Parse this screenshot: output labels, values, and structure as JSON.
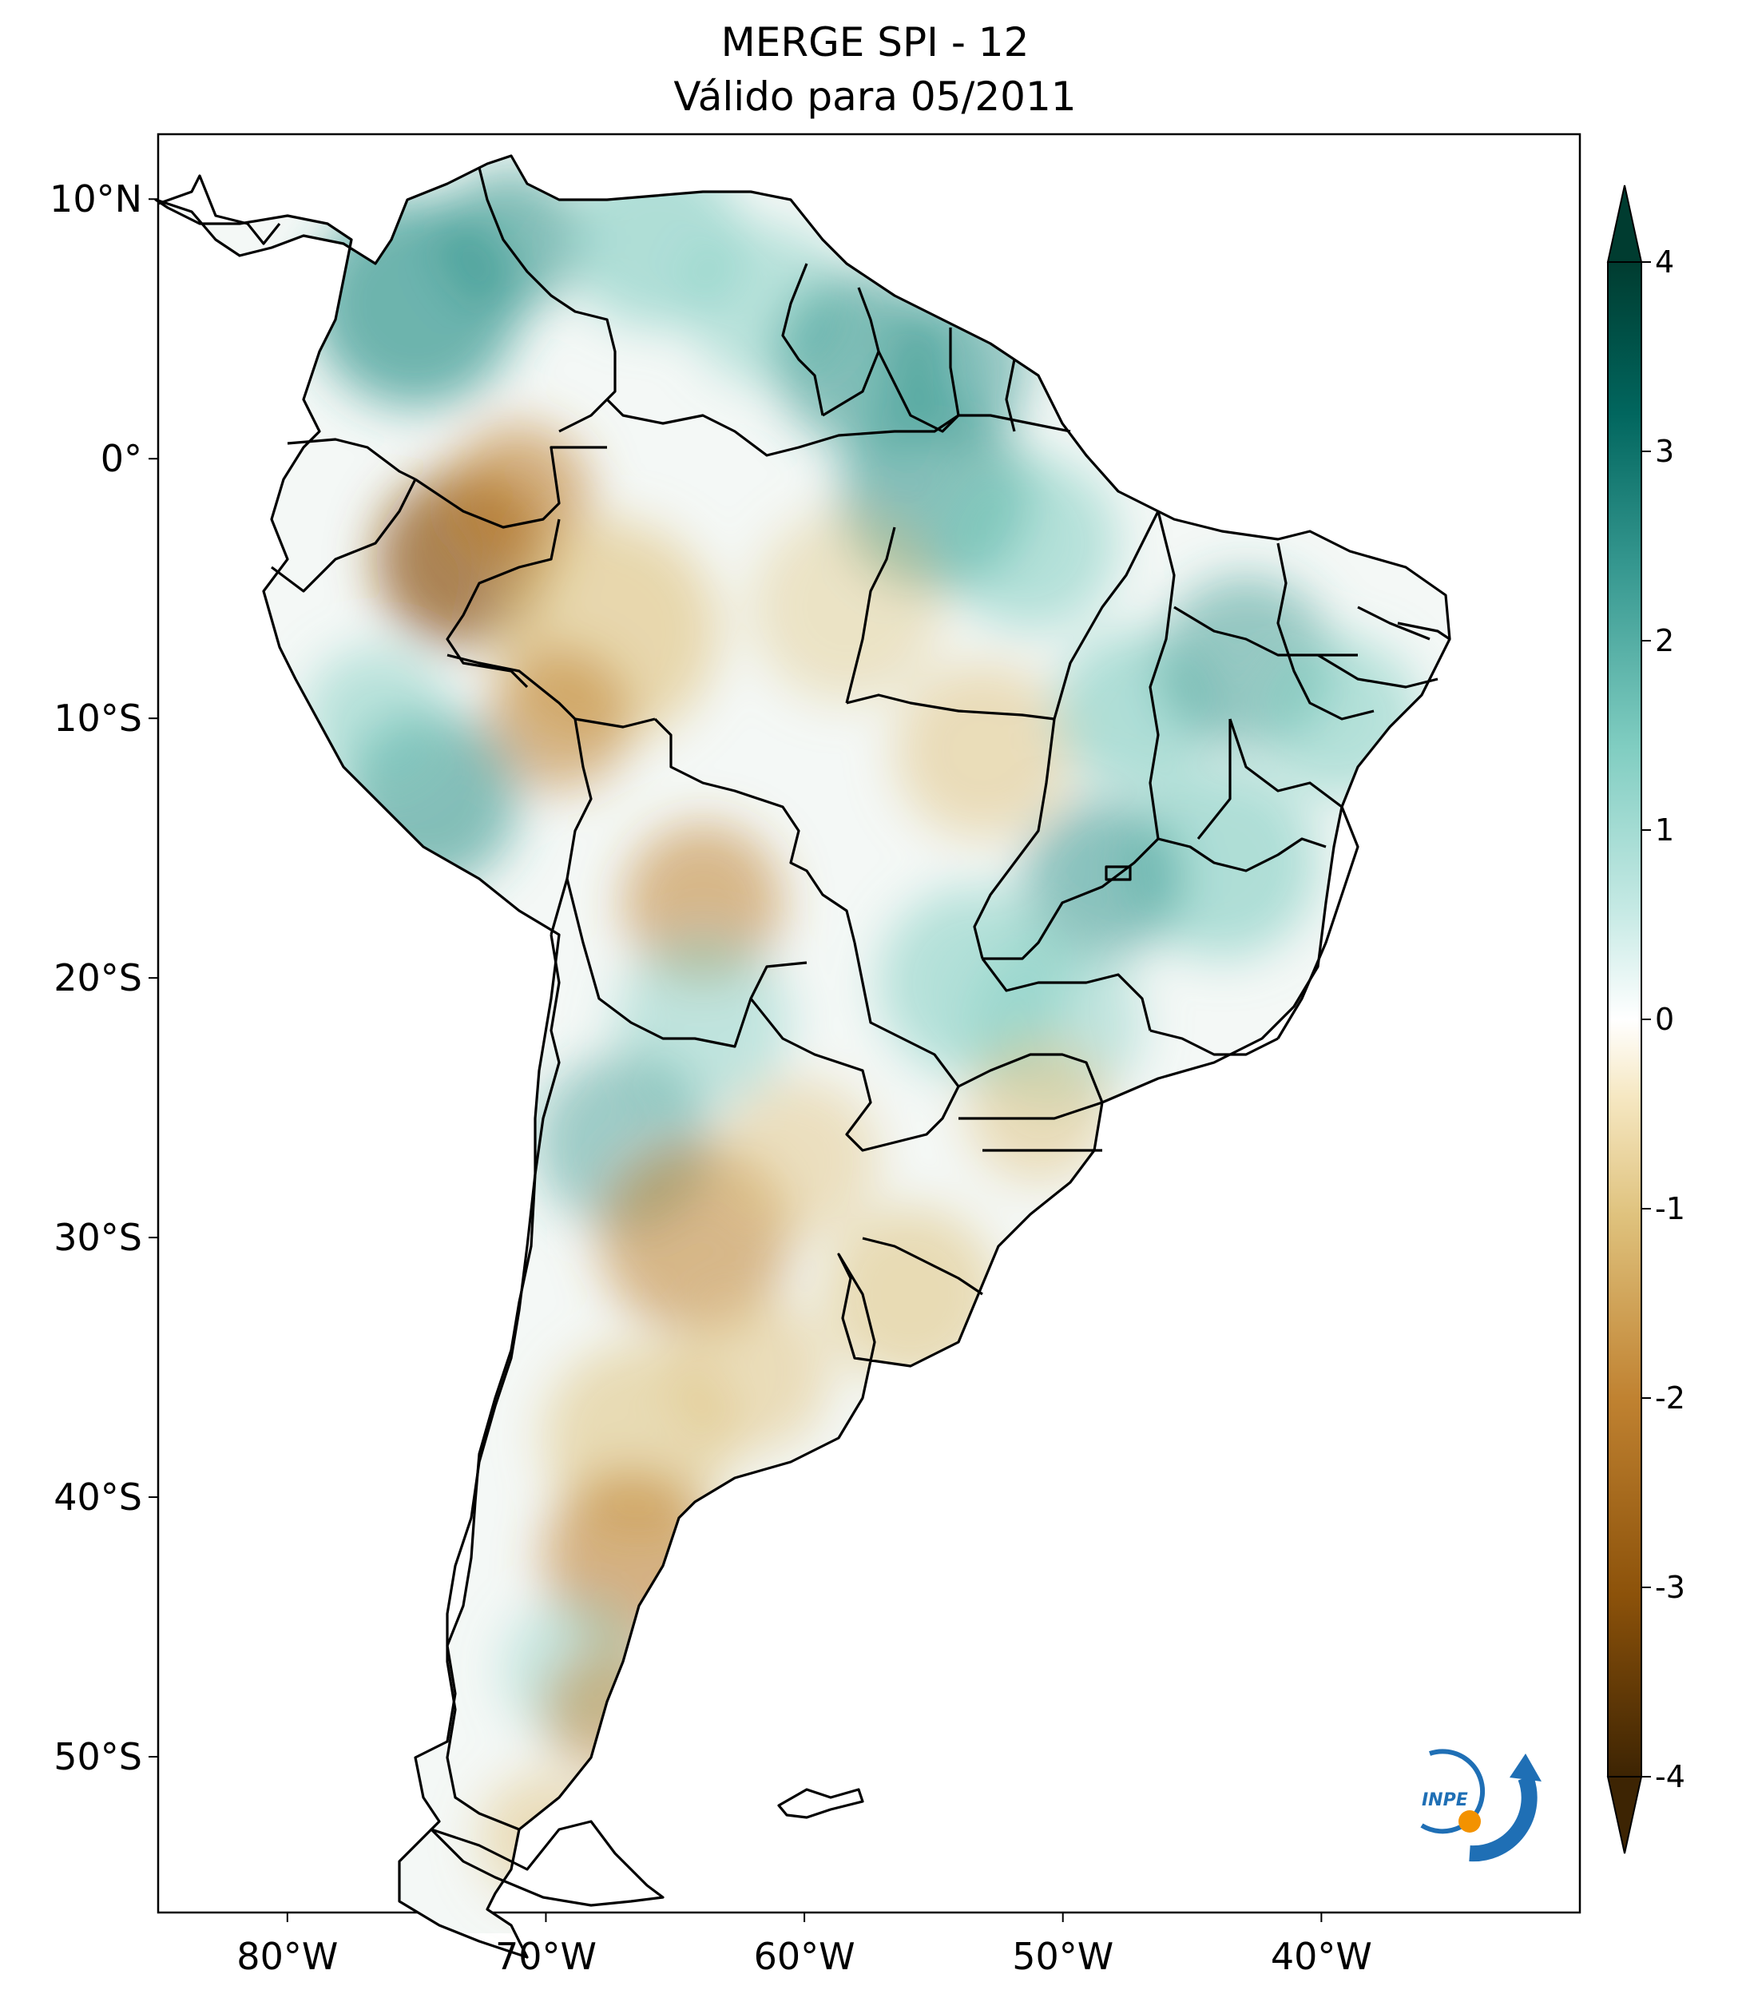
{
  "title": {
    "line1": "MERGE   SPI - 12",
    "line2": "Válido para 05/2011"
  },
  "map": {
    "lat_labels": [
      "10°N",
      "0°",
      "10°S",
      "20°S",
      "30°S",
      "40°S",
      "50°S"
    ],
    "lon_labels": [
      "80°W",
      "70°W",
      "60°W",
      "50°W",
      "40°W"
    ],
    "lon_range": [
      -85,
      -30
    ],
    "lat_range": [
      -56,
      12.5
    ]
  },
  "colorbar": {
    "ticks": [
      "4",
      "3",
      "2",
      "1",
      "0",
      "-1",
      "-2",
      "-3",
      "-4"
    ],
    "range": [
      -4,
      4
    ],
    "extend": "both",
    "colormap": [
      "#3d2403",
      "#8c520a",
      "#c08231",
      "#dfc27d",
      "#f6e8c3",
      "#ffffff",
      "#c7eae5",
      "#80cdc1",
      "#35978f",
      "#01665e",
      "#003c30"
    ]
  },
  "logo": {
    "text": "INPE",
    "colors": [
      "#1f6fb5",
      "#f39200"
    ]
  }
}
